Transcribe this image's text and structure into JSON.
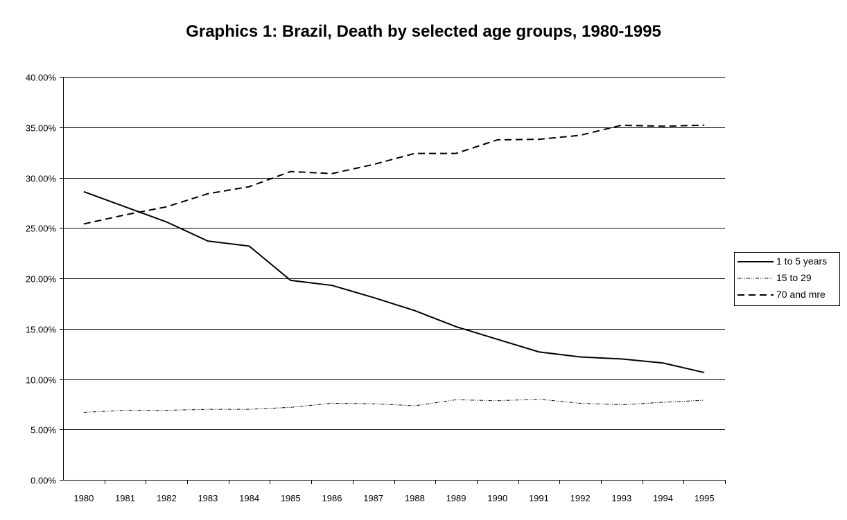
{
  "chart_data": {
    "type": "line",
    "title": "Graphics 1: Brazil, Death by selected age groups, 1980-1995",
    "xlabel": "",
    "ylabel": "",
    "categories": [
      "1980",
      "1981",
      "1982",
      "1983",
      "1984",
      "1985",
      "1986",
      "1987",
      "1988",
      "1989",
      "1990",
      "1991",
      "1992",
      "1993",
      "1994",
      "1995"
    ],
    "ylim": [
      0,
      40
    ],
    "yticks": [
      "0.00%",
      "5.00%",
      "10.00%",
      "15.00%",
      "20.00%",
      "25.00%",
      "30.00%",
      "35.00%",
      "40.00%"
    ],
    "grid": "horizontal",
    "legend_position": "right",
    "series": [
      {
        "name": "1 to 5 years",
        "style": "solid",
        "color": "#000000",
        "values": [
          28.6,
          27.1,
          25.6,
          23.7,
          23.2,
          19.8,
          19.3,
          18.1,
          16.8,
          15.2,
          13.95,
          12.7,
          12.2,
          12.0,
          11.6,
          10.65
        ]
      },
      {
        "name": "15 to 29",
        "style": "dash-dot-dot",
        "color": "#000000",
        "values": [
          6.7,
          6.9,
          6.9,
          7.0,
          7.0,
          7.2,
          7.6,
          7.55,
          7.35,
          7.95,
          7.85,
          8.0,
          7.6,
          7.45,
          7.7,
          7.9
        ]
      },
      {
        "name": "70 and mre",
        "style": "dashed",
        "color": "#000000",
        "values": [
          25.4,
          26.3,
          27.1,
          28.4,
          29.1,
          30.6,
          30.4,
          31.3,
          32.4,
          32.4,
          33.75,
          33.8,
          34.2,
          35.2,
          35.1,
          35.2
        ]
      }
    ]
  }
}
